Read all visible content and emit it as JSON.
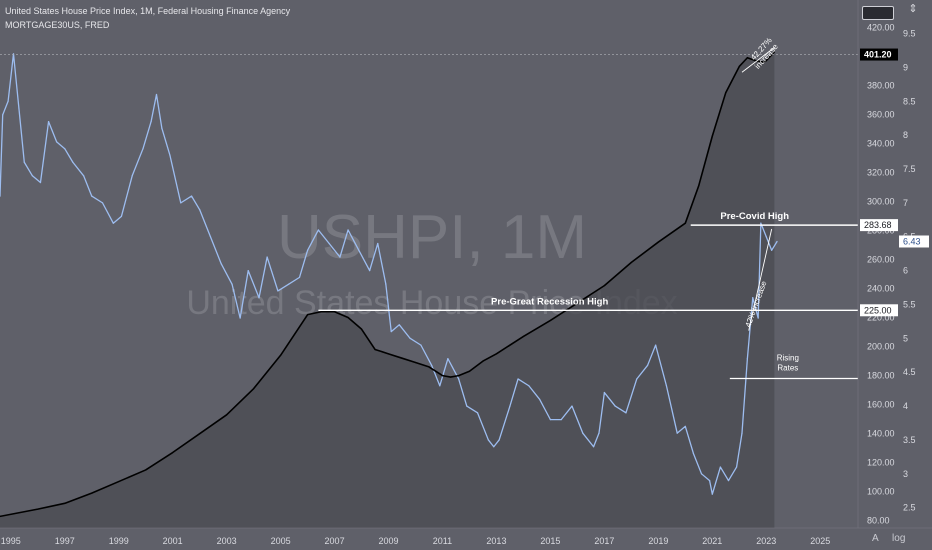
{
  "legend": {
    "line1": "United States House Price Index, 1M, Federal Housing Finance Agency",
    "line2": "MORTGAGE30US, FRED"
  },
  "watermark": {
    "symbol": "USHPI, 1M",
    "name": "United States House Price Index"
  },
  "colors": {
    "background": "#5f6069",
    "shaded_area": "#4a4b52",
    "hpi_line": "#000000",
    "mortgage_line": "#9dbdf0",
    "annotation": "#ffffff"
  },
  "icons": [
    "settings-icon",
    "auto-scale-icon"
  ],
  "bottom_icons": {
    "a": "A",
    "log": "log"
  },
  "chart_data": {
    "type": "line",
    "x_ticks": [
      "1995",
      "1997",
      "1999",
      "2001",
      "2003",
      "2005",
      "2007",
      "2009",
      "2011",
      "2013",
      "2015",
      "2017",
      "2019",
      "2021",
      "2023",
      "2025"
    ],
    "y_right_ticks": [
      "420.00",
      "400.00",
      "380.00",
      "360.00",
      "340.00",
      "320.00",
      "300.00",
      "280.00",
      "260.00",
      "240.00",
      "220.00",
      "200.00",
      "180.00",
      "160.00",
      "140.00",
      "120.00",
      "100.00",
      "80.00"
    ],
    "y_right2_ticks": [
      "9.5",
      "9",
      "8.5",
      "8",
      "7.5",
      "7",
      "6.5",
      "6",
      "5.5",
      "5",
      "4.5",
      "4",
      "3.5",
      "3",
      "2.5"
    ],
    "ylim_hpi": [
      75,
      425
    ],
    "ylim_rate": [
      2.2,
      9.7
    ],
    "xlim": [
      1994.6,
      2026.4
    ],
    "current_values": {
      "hpi": "401.20",
      "rate": "6.43"
    },
    "series": [
      {
        "name": "United States House Price Index",
        "axis": "hpi",
        "x": [
          1994.6,
          1996,
          1997,
          1998,
          1999,
          2000,
          2001,
          2002,
          2003,
          2004,
          2005,
          2006,
          2006.5,
          2007,
          2007.5,
          2008,
          2008.5,
          2009,
          2009.5,
          2010,
          2010.5,
          2011,
          2011.3,
          2011.6,
          2012,
          2012.5,
          2013,
          2014,
          2015,
          2016,
          2017,
          2018,
          2019,
          2020,
          2020.5,
          2021,
          2021.5,
          2022,
          2022.3,
          2022.6,
          2022.9,
          2023,
          2023.3
        ],
        "y": [
          83,
          88,
          92,
          99,
          107,
          115,
          127,
          140,
          153,
          171,
          194,
          222,
          224,
          224,
          220,
          212,
          198,
          195,
          192,
          189,
          186,
          180,
          179,
          180,
          183,
          190,
          195,
          207,
          218,
          230,
          242,
          258,
          272,
          285,
          311,
          345,
          375,
          393,
          399,
          397,
          396,
          397,
          403
        ]
      },
      {
        "name": "MORTGAGE30US",
        "axis": "rate",
        "x": [
          1994.6,
          1994.7,
          1994.9,
          1995.1,
          1995.3,
          1995.5,
          1995.8,
          1996.1,
          1996.4,
          1996.7,
          1997.0,
          1997.3,
          1997.7,
          1998.0,
          1998.4,
          1998.8,
          1999.1,
          1999.5,
          1999.9,
          2000.2,
          2000.4,
          2000.6,
          2000.9,
          2001.3,
          2001.7,
          2002.0,
          2002.4,
          2002.8,
          2003.2,
          2003.5,
          2003.8,
          2004.2,
          2004.5,
          2004.9,
          2005.3,
          2005.7,
          2006.0,
          2006.4,
          2006.8,
          2007.2,
          2007.5,
          2007.9,
          2008.3,
          2008.6,
          2008.9,
          2009.1,
          2009.4,
          2009.8,
          2010.2,
          2010.6,
          2010.9,
          2011.2,
          2011.6,
          2011.9,
          2012.3,
          2012.7,
          2012.9,
          2013.1,
          2013.5,
          2013.8,
          2014.2,
          2014.6,
          2015.0,
          2015.4,
          2015.8,
          2016.2,
          2016.6,
          2016.8,
          2017.0,
          2017.4,
          2017.8,
          2018.2,
          2018.6,
          2018.9,
          2019.3,
          2019.7,
          2020.0,
          2020.3,
          2020.6,
          2020.9,
          2021.0,
          2021.3,
          2021.6,
          2021.9,
          2022.1,
          2022.3,
          2022.5,
          2022.7,
          2022.8,
          2023.0,
          2023.2,
          2023.4
        ],
        "y": [
          7.1,
          8.3,
          8.5,
          9.2,
          8.4,
          7.6,
          7.4,
          7.3,
          8.2,
          7.9,
          7.8,
          7.6,
          7.4,
          7.1,
          7.0,
          6.7,
          6.8,
          7.4,
          7.8,
          8.2,
          8.6,
          8.1,
          7.7,
          7.0,
          7.1,
          6.9,
          6.5,
          6.1,
          5.8,
          5.3,
          6.0,
          5.6,
          6.2,
          5.7,
          5.8,
          5.9,
          6.3,
          6.6,
          6.4,
          6.2,
          6.6,
          6.3,
          6.0,
          6.4,
          5.8,
          5.1,
          5.2,
          5.0,
          4.9,
          4.6,
          4.3,
          4.7,
          4.4,
          4.0,
          3.9,
          3.5,
          3.4,
          3.5,
          4.0,
          4.4,
          4.3,
          4.1,
          3.8,
          3.8,
          4.0,
          3.6,
          3.4,
          3.6,
          4.2,
          4.0,
          3.9,
          4.4,
          4.6,
          4.9,
          4.3,
          3.6,
          3.7,
          3.3,
          3.0,
          2.9,
          2.7,
          3.1,
          2.9,
          3.1,
          3.6,
          4.7,
          5.6,
          5.3,
          6.7,
          6.5,
          6.3,
          6.43
        ]
      }
    ],
    "annotations": {
      "pre_covid_high": {
        "label": "Pre-Covid High",
        "value": "283.68"
      },
      "pre_great_recession_high": {
        "label": "Pre-Great Recession High",
        "value": "225.00"
      },
      "rising_rates": {
        "line1": "Rising",
        "line2": "Rates"
      },
      "pct_increase_top": {
        "line1": "42.27%",
        "line2": "increase"
      },
      "pct_increase_mid": "42% increase"
    }
  }
}
